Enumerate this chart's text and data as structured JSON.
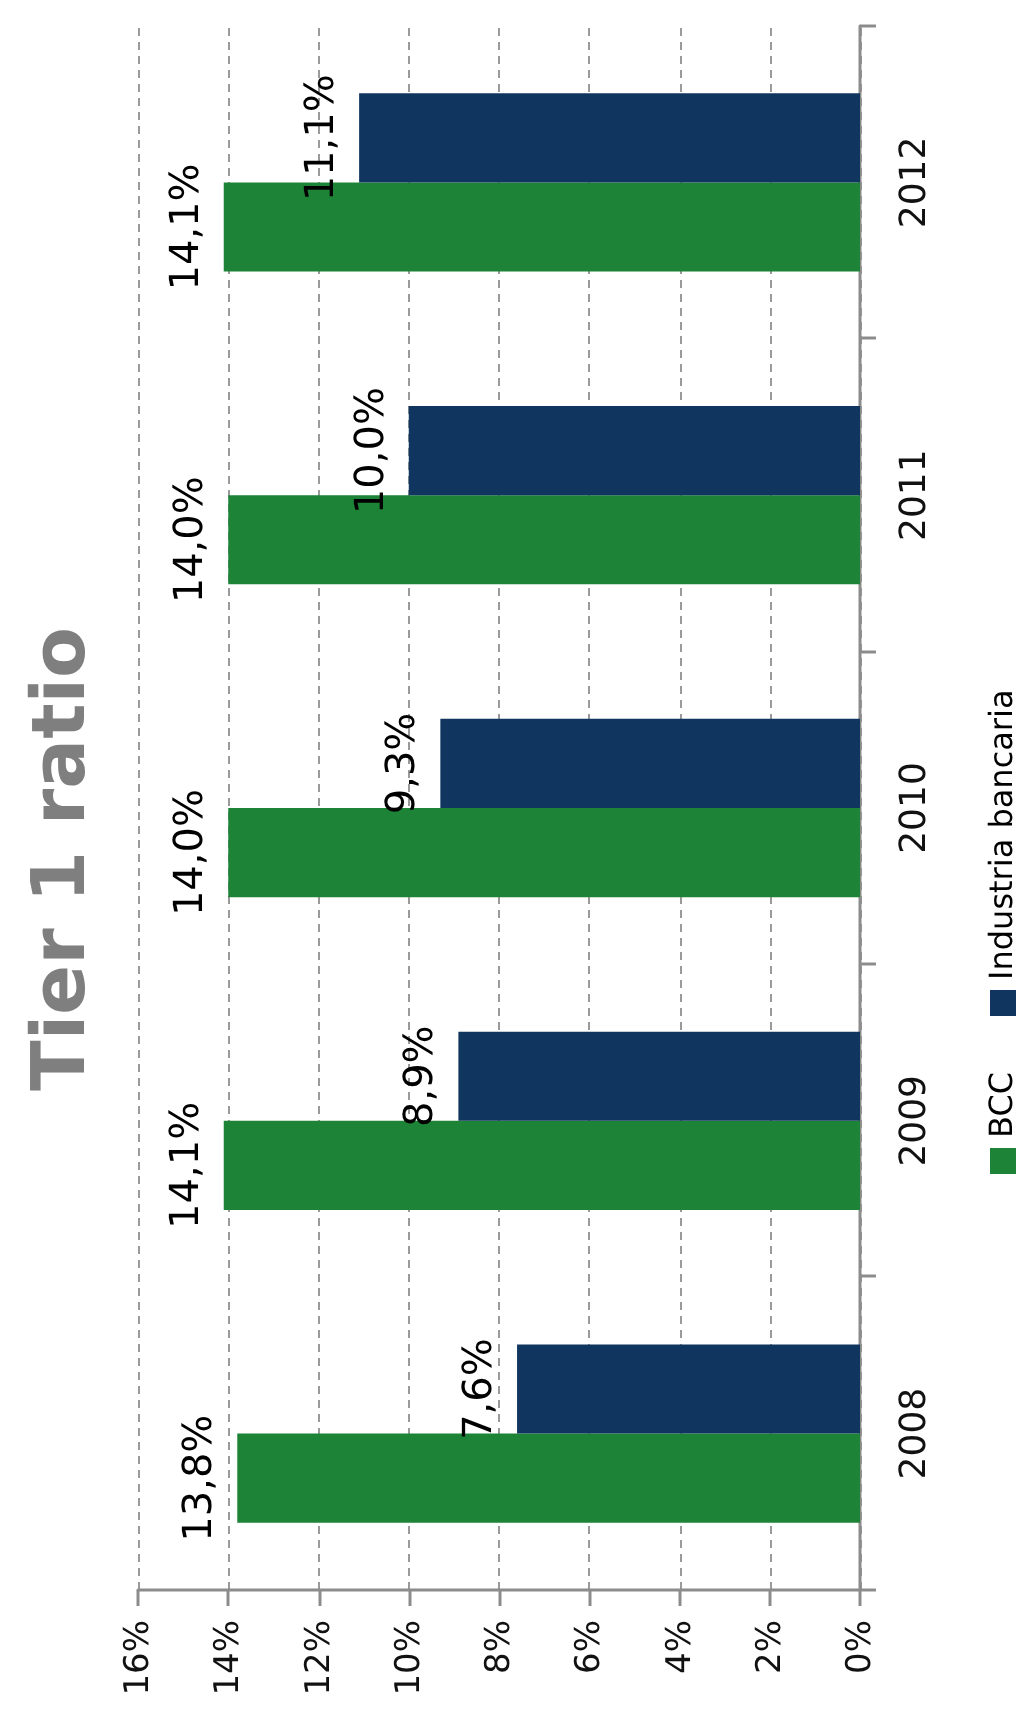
{
  "chart_data": {
    "type": "bar",
    "orientation": "horizontal",
    "title": "Tier 1 ratio",
    "categories": [
      "2012",
      "2011",
      "2010",
      "2009",
      "2008"
    ],
    "series": [
      {
        "name": "BCC",
        "color": "#1d8337",
        "values": [
          14.1,
          14.0,
          14.0,
          14.1,
          13.8
        ],
        "value_labels": [
          "14,1%",
          "14,0%",
          "14,0%",
          "14,1%",
          "13,8%"
        ]
      },
      {
        "name": "Industria bancaria",
        "color": "#10365f",
        "values": [
          11.1,
          10.0,
          9.3,
          8.9,
          7.6
        ],
        "value_labels": [
          "11,1%",
          "10,0%",
          "9,3%",
          "8,9%",
          "7,6%"
        ]
      }
    ],
    "xlim": [
      16,
      0
    ],
    "xticks": [
      {
        "value": 16,
        "label": "16%"
      },
      {
        "value": 14,
        "label": "14%"
      },
      {
        "value": 12,
        "label": "12%"
      },
      {
        "value": 10,
        "label": "10%"
      },
      {
        "value": 8,
        "label": "8%"
      },
      {
        "value": 6,
        "label": "6%"
      },
      {
        "value": 4,
        "label": "4%"
      },
      {
        "value": 2,
        "label": "2%"
      },
      {
        "value": 0,
        "label": "0%"
      }
    ],
    "grid": "x",
    "legend": "right"
  }
}
